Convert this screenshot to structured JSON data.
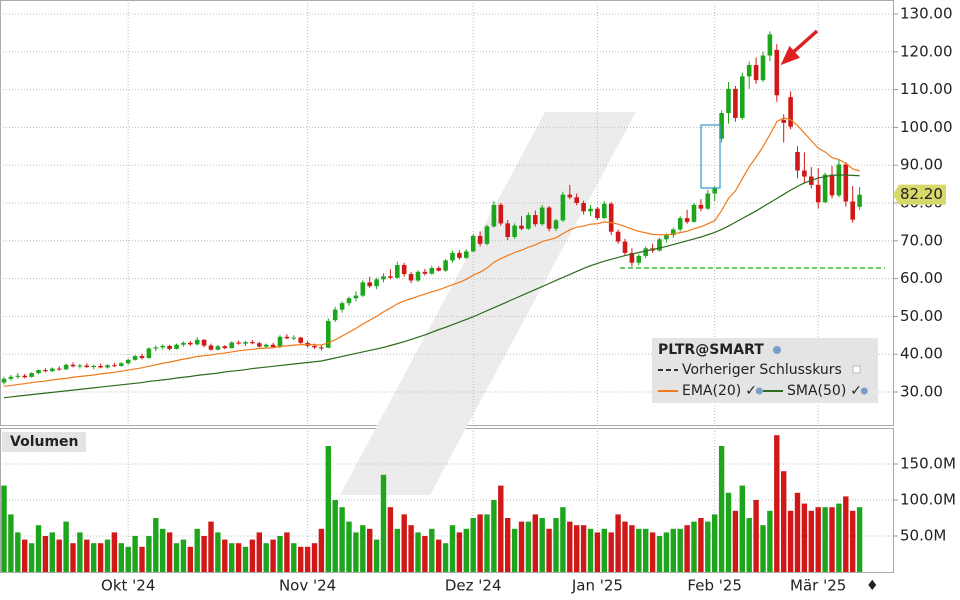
{
  "chart_data": {
    "type": "candlestick",
    "symbol": "PLTR@SMART",
    "categories": [
      null,
      null,
      null,
      null,
      null,
      null,
      null,
      null,
      null,
      null,
      null,
      null,
      null,
      null,
      null,
      null,
      null,
      null,
      "Okt '24",
      null,
      null,
      null,
      null,
      null,
      null,
      null,
      null,
      null,
      null,
      null,
      null,
      null,
      null,
      null,
      null,
      null,
      null,
      null,
      null,
      null,
      null,
      null,
      null,
      null,
      "Nov '24",
      null,
      null,
      null,
      null,
      null,
      null,
      null,
      null,
      null,
      null,
      null,
      null,
      null,
      null,
      null,
      null,
      null,
      null,
      null,
      null,
      null,
      null,
      null,
      "Dez '24",
      null,
      null,
      null,
      null,
      null,
      null,
      null,
      null,
      null,
      null,
      null,
      null,
      null,
      null,
      null,
      null,
      null,
      "Jan '25",
      null,
      null,
      null,
      null,
      null,
      null,
      null,
      null,
      null,
      null,
      null,
      null,
      null,
      null,
      null,
      null,
      "Feb '25",
      null,
      null,
      null,
      null,
      null,
      null,
      null,
      null,
      null,
      null,
      null,
      null,
      null,
      null,
      "Mär '25",
      null,
      null,
      null,
      null,
      null,
      null
    ],
    "ohlc": [
      [
        32.5,
        34,
        32,
        33.5
      ],
      [
        33.5,
        34.5,
        33,
        34
      ],
      [
        34,
        35,
        33.5,
        34.3
      ],
      [
        34.3,
        34.8,
        33.6,
        33.9
      ],
      [
        34,
        35.2,
        33.8,
        35
      ],
      [
        35,
        36,
        34.7,
        35.8
      ],
      [
        35.8,
        36.3,
        35.2,
        35.5
      ],
      [
        35.5,
        36.5,
        35.3,
        36.2
      ],
      [
        36.2,
        36.8,
        35.6,
        36
      ],
      [
        36,
        37.5,
        35.8,
        37.2
      ],
      [
        37.2,
        37.8,
        36.5,
        36.8
      ],
      [
        36.8,
        37.4,
        36.2,
        37
      ],
      [
        37,
        37.6,
        36.4,
        36.6
      ],
      [
        36.6,
        37.2,
        36,
        36.9
      ],
      [
        36.9,
        37.5,
        36.3,
        36.5
      ],
      [
        36.5,
        37.3,
        36.2,
        37.1
      ],
      [
        37.1,
        37.7,
        36.6,
        36.9
      ],
      [
        36.9,
        37.9,
        36.7,
        37.6
      ],
      [
        37.6,
        38.8,
        37.2,
        38.5
      ],
      [
        38.5,
        39.8,
        38.3,
        39.5
      ],
      [
        39.5,
        40.2,
        38.6,
        39
      ],
      [
        39,
        41.8,
        38.8,
        41.5
      ],
      [
        41.5,
        42.3,
        40.8,
        41.8
      ],
      [
        41.8,
        42.6,
        41.2,
        42.2
      ],
      [
        42.2,
        42.5,
        41,
        41.4
      ],
      [
        41.4,
        42.8,
        41.2,
        42.5
      ],
      [
        42.5,
        43.4,
        42,
        43
      ],
      [
        43,
        43.5,
        42.2,
        42.6
      ],
      [
        42.6,
        44.5,
        42.3,
        43.8
      ],
      [
        43.8,
        44,
        41.8,
        42.3
      ],
      [
        42.3,
        42.8,
        40.9,
        41.2
      ],
      [
        41.2,
        42.5,
        41,
        42.1
      ],
      [
        42.1,
        42.4,
        41.3,
        41.6
      ],
      [
        41.6,
        43.4,
        41.5,
        43.1
      ],
      [
        43.1,
        43.6,
        42.5,
        42.8
      ],
      [
        42.8,
        43.5,
        42.2,
        43.2
      ],
      [
        43.2,
        43.8,
        42.6,
        42.9
      ],
      [
        42.9,
        43.3,
        41.8,
        42
      ],
      [
        42,
        42.8,
        41.5,
        42.5
      ],
      [
        42.5,
        43,
        41.7,
        41.9
      ],
      [
        41.9,
        45,
        41.6,
        44.6
      ],
      [
        44.6,
        45.3,
        44,
        44.2
      ],
      [
        44.2,
        45,
        43.7,
        44.4
      ],
      [
        44.4,
        44.6,
        42.6,
        43
      ],
      [
        43,
        43.5,
        41.8,
        42.2
      ],
      [
        42.2,
        42.8,
        41.4,
        41.8
      ],
      [
        41.8,
        42.5,
        41,
        41.5
      ],
      [
        41.7,
        49.5,
        41.6,
        48.8
      ],
      [
        49,
        52.5,
        48.5,
        51.8
      ],
      [
        51.8,
        54,
        51,
        53.5
      ],
      [
        53.5,
        55.2,
        52.8,
        54.8
      ],
      [
        54.8,
        56.6,
        54,
        55.5
      ],
      [
        55.5,
        59.5,
        55.1,
        59
      ],
      [
        59,
        60.5,
        57.5,
        58
      ],
      [
        58,
        60.2,
        57.2,
        59.8
      ],
      [
        59.8,
        61.4,
        59,
        60.6
      ],
      [
        60.6,
        62.5,
        59.8,
        60.2
      ],
      [
        60.2,
        64.5,
        60,
        63.6
      ],
      [
        63.6,
        64.2,
        60.5,
        61.2
      ],
      [
        61.2,
        61.8,
        58.8,
        59.5
      ],
      [
        59.5,
        62.2,
        59.1,
        61.8
      ],
      [
        61.8,
        62.6,
        60.8,
        61.3
      ],
      [
        61.3,
        63.4,
        61,
        62.8
      ],
      [
        62.8,
        63.3,
        61.9,
        62.1
      ],
      [
        62.1,
        65.2,
        61.8,
        64.8
      ],
      [
        64.8,
        67.4,
        64.2,
        66.8
      ],
      [
        66.8,
        67.5,
        65,
        65.5
      ],
      [
        65.5,
        67.8,
        65.2,
        67.2
      ],
      [
        67.2,
        71.8,
        67,
        71.3
      ],
      [
        71.3,
        72.5,
        68.5,
        69.2
      ],
      [
        69.2,
        74.2,
        68.8,
        73.8
      ],
      [
        73.8,
        80.5,
        73.5,
        79.5
      ],
      [
        79.5,
        80,
        74,
        74.6
      ],
      [
        74.6,
        75.5,
        70.2,
        71
      ],
      [
        71,
        74.6,
        70.5,
        74
      ],
      [
        74,
        76.5,
        72.8,
        73.2
      ],
      [
        73.2,
        77.5,
        72.9,
        76.8
      ],
      [
        76.8,
        78,
        73.8,
        74.4
      ],
      [
        74.4,
        79.5,
        74,
        78.8
      ],
      [
        78.8,
        79.2,
        72.5,
        73.2
      ],
      [
        73.2,
        75.8,
        72.6,
        75.4
      ],
      [
        75.4,
        83,
        75,
        82.2
      ],
      [
        82.2,
        84.8,
        81,
        81.5
      ],
      [
        81.5,
        82.5,
        79.4,
        80
      ],
      [
        80,
        80.6,
        77,
        77.8
      ],
      [
        77.8,
        79.5,
        76.5,
        78.5
      ],
      [
        78.5,
        79,
        75.5,
        76
      ],
      [
        76,
        80.5,
        75.8,
        79.8
      ],
      [
        79.8,
        80.2,
        71.5,
        72.4
      ],
      [
        72.4,
        73,
        69.2,
        69.8
      ],
      [
        69.8,
        70.5,
        66,
        66.8
      ],
      [
        66.8,
        68,
        63.2,
        64.2
      ],
      [
        64.2,
        66.5,
        63.5,
        66
      ],
      [
        66,
        68.5,
        65.4,
        68
      ],
      [
        68,
        69.2,
        66.8,
        67.4
      ],
      [
        67.4,
        70.8,
        67.2,
        70.4
      ],
      [
        70.4,
        72,
        69.5,
        71.5
      ],
      [
        71.5,
        73.5,
        70.8,
        73
      ],
      [
        73,
        76.5,
        72.5,
        76
      ],
      [
        76,
        78.2,
        74.5,
        75
      ],
      [
        75,
        80,
        74.8,
        79.5
      ],
      [
        79.5,
        81,
        77.8,
        78.5
      ],
      [
        78.5,
        83.5,
        78.2,
        82.5
      ],
      [
        82.5,
        84.5,
        80.5,
        83.9
      ],
      [
        97,
        104.5,
        96,
        103.8
      ],
      [
        103.8,
        112,
        101,
        110.2
      ],
      [
        110.2,
        111,
        101.5,
        102.5
      ],
      [
        102.5,
        114.5,
        102,
        113.5
      ],
      [
        113.5,
        117.4,
        110.2,
        116.5
      ],
      [
        116.5,
        118.5,
        111.5,
        112.5
      ],
      [
        112.5,
        120,
        112,
        119
      ],
      [
        119,
        125.4,
        117.5,
        124.6
      ],
      [
        120.5,
        122,
        106.8,
        108.5
      ],
      [
        102,
        103.5,
        96,
        101.2
      ],
      [
        108,
        109.5,
        99.5,
        100.2
      ],
      [
        93.5,
        95,
        86.5,
        88.6
      ],
      [
        88.6,
        93.4,
        85.2,
        87
      ],
      [
        87,
        89.5,
        83.8,
        84.8
      ],
      [
        84.8,
        89.2,
        78.5,
        80.2
      ],
      [
        80.2,
        88,
        80,
        87.5
      ],
      [
        87.5,
        89.8,
        81.2,
        82
      ],
      [
        82,
        91.5,
        81.5,
        90.2
      ],
      [
        90.2,
        90.8,
        79,
        80.4
      ],
      [
        80.4,
        84.5,
        74.8,
        75.6
      ],
      [
        79,
        84.2,
        78.2,
        82.2
      ]
    ],
    "colors": {
      "up": "#1ea51e",
      "down": "#d01818"
    },
    "ylim": [
      21.27,
      133.7
    ],
    "yticks": [
      {
        "value": 30,
        "label": "30.00"
      },
      {
        "value": 40,
        "label": "40.00"
      },
      {
        "value": 50,
        "label": "50.00"
      },
      {
        "value": 60,
        "label": "60.00"
      },
      {
        "value": 70,
        "label": "70.00"
      },
      {
        "value": 80,
        "label": "80.00"
      },
      {
        "value": 90,
        "label": "90.00"
      },
      {
        "value": 100,
        "label": "100.00"
      },
      {
        "value": 110,
        "label": "110.00"
      },
      {
        "value": 120,
        "label": "120.00"
      },
      {
        "value": 130,
        "label": "130.00"
      }
    ],
    "grid": true,
    "last_price": {
      "value": 82.2,
      "label": "82.20"
    },
    "hline": {
      "value": 62.8,
      "color": "#3cbf3c"
    },
    "previous_close_label": "Vorheriger Schlusskurs",
    "lines": [
      {
        "name": "EMA(20)",
        "color": "#f07a1a",
        "values": [
          31.5,
          31.7,
          32,
          32.2,
          32.5,
          32.7,
          32.9,
          33.2,
          33.4,
          33.6,
          33.9,
          34.1,
          34.3,
          34.5,
          34.8,
          35,
          35.2,
          35.5,
          35.8,
          36.1,
          36.4,
          36.8,
          37.2,
          37.6,
          37.9,
          38.3,
          38.7,
          39,
          39.4,
          39.6,
          39.8,
          40.1,
          40.3,
          40.6,
          40.9,
          41.1,
          41.3,
          41.5,
          41.6,
          41.7,
          42,
          42.2,
          42.4,
          42.5,
          42.6,
          42.5,
          42.4,
          43,
          43.8,
          44.8,
          45.8,
          46.8,
          48,
          49,
          50,
          51.2,
          52.2,
          53.3,
          54.1,
          54.7,
          55.3,
          55.9,
          56.5,
          57,
          57.7,
          58.4,
          59,
          59.8,
          60.9,
          61.7,
          62.8,
          64.3,
          65.3,
          66.1,
          66.9,
          67.5,
          68.3,
          68.9,
          69.8,
          70.3,
          70.8,
          71.9,
          72.9,
          73.6,
          73.9,
          74.4,
          74.5,
          75,
          74.8,
          74.4,
          73.8,
          73.1,
          72.5,
          72.1,
          71.7,
          71.6,
          71.6,
          71.8,
          72.2,
          72.5,
          73.2,
          73.7,
          74.5,
          75.3,
          78,
          81.2,
          83.2,
          86.4,
          89.6,
          92.1,
          94.9,
          98.1,
          101.5,
          102.5,
          102,
          100.5,
          98.5,
          96.5,
          94.5,
          93.5,
          92,
          91.5,
          90.5,
          89,
          88.5
        ]
      },
      {
        "name": "SMA(50)",
        "color": "#2e6b1e",
        "values": [
          28.5,
          28.7,
          28.9,
          29.1,
          29.3,
          29.5,
          29.7,
          29.9,
          30.1,
          30.3,
          30.5,
          30.7,
          30.9,
          31.1,
          31.3,
          31.5,
          31.7,
          31.9,
          32.1,
          32.3,
          32.5,
          32.8,
          33,
          33.2,
          33.4,
          33.7,
          33.9,
          34.1,
          34.4,
          34.6,
          34.8,
          35,
          35.3,
          35.5,
          35.7,
          35.9,
          36.2,
          36.4,
          36.6,
          36.8,
          37,
          37.2,
          37.4,
          37.6,
          37.8,
          38,
          38.2,
          38.6,
          39,
          39.4,
          39.8,
          40.2,
          40.6,
          41,
          41.4,
          41.8,
          42.3,
          42.8,
          43.3,
          43.9,
          44.5,
          45.1,
          45.8,
          46.5,
          47.1,
          47.8,
          48.5,
          49.2,
          49.9,
          50.7,
          51.5,
          52.3,
          53.1,
          53.9,
          54.7,
          55.5,
          56.3,
          57.1,
          57.9,
          58.7,
          59.5,
          60.3,
          61.1,
          61.9,
          62.7,
          63.4,
          64,
          64.6,
          65.1,
          65.6,
          66.1,
          66.5,
          66.9,
          67.3,
          67.7,
          68.1,
          68.5,
          69,
          69.5,
          70,
          70.5,
          71,
          71.6,
          72.2,
          73,
          73.9,
          74.9,
          75.9,
          76.9,
          77.9,
          79,
          80.1,
          81.2,
          82.3,
          83.4,
          84.4,
          85.3,
          86,
          86.6,
          87,
          87.3,
          87.4,
          87.4,
          87.3,
          87.2
        ]
      }
    ],
    "volume": {
      "title": "Volumen",
      "ylim": [
        0,
        200000000
      ],
      "yticks": [
        {
          "value": 50000000,
          "label": "50.0M"
        },
        {
          "value": 100000000,
          "label": "100.0M"
        },
        {
          "value": 150000000,
          "label": "150.0M"
        }
      ],
      "values": [
        120000000,
        80000000,
        55000000,
        45000000,
        40000000,
        65000000,
        50000000,
        55000000,
        45000000,
        70000000,
        40000000,
        55000000,
        45000000,
        40000000,
        40000000,
        45000000,
        55000000,
        40000000,
        35000000,
        50000000,
        35000000,
        50000000,
        75000000,
        60000000,
        55000000,
        40000000,
        45000000,
        35000000,
        60000000,
        50000000,
        70000000,
        55000000,
        45000000,
        40000000,
        40000000,
        35000000,
        45000000,
        55000000,
        40000000,
        45000000,
        50000000,
        55000000,
        40000000,
        35000000,
        35000000,
        40000000,
        60000000,
        175000000,
        100000000,
        90000000,
        70000000,
        55000000,
        65000000,
        60000000,
        45000000,
        135000000,
        90000000,
        60000000,
        80000000,
        65000000,
        55000000,
        50000000,
        60000000,
        45000000,
        40000000,
        65000000,
        55000000,
        60000000,
        75000000,
        80000000,
        80000000,
        100000000,
        120000000,
        75000000,
        60000000,
        70000000,
        70000000,
        80000000,
        75000000,
        60000000,
        75000000,
        90000000,
        70000000,
        65000000,
        65000000,
        60000000,
        55000000,
        60000000,
        55000000,
        80000000,
        70000000,
        65000000,
        60000000,
        60000000,
        55000000,
        50000000,
        55000000,
        60000000,
        60000000,
        65000000,
        70000000,
        75000000,
        70000000,
        80000000,
        175000000,
        110000000,
        85000000,
        120000000,
        75000000,
        100000000,
        65000000,
        85000000,
        190000000,
        140000000,
        85000000,
        110000000,
        95000000,
        85000000,
        90000000,
        90000000,
        90000000,
        95000000,
        105000000,
        85000000,
        90000000
      ]
    }
  }
}
